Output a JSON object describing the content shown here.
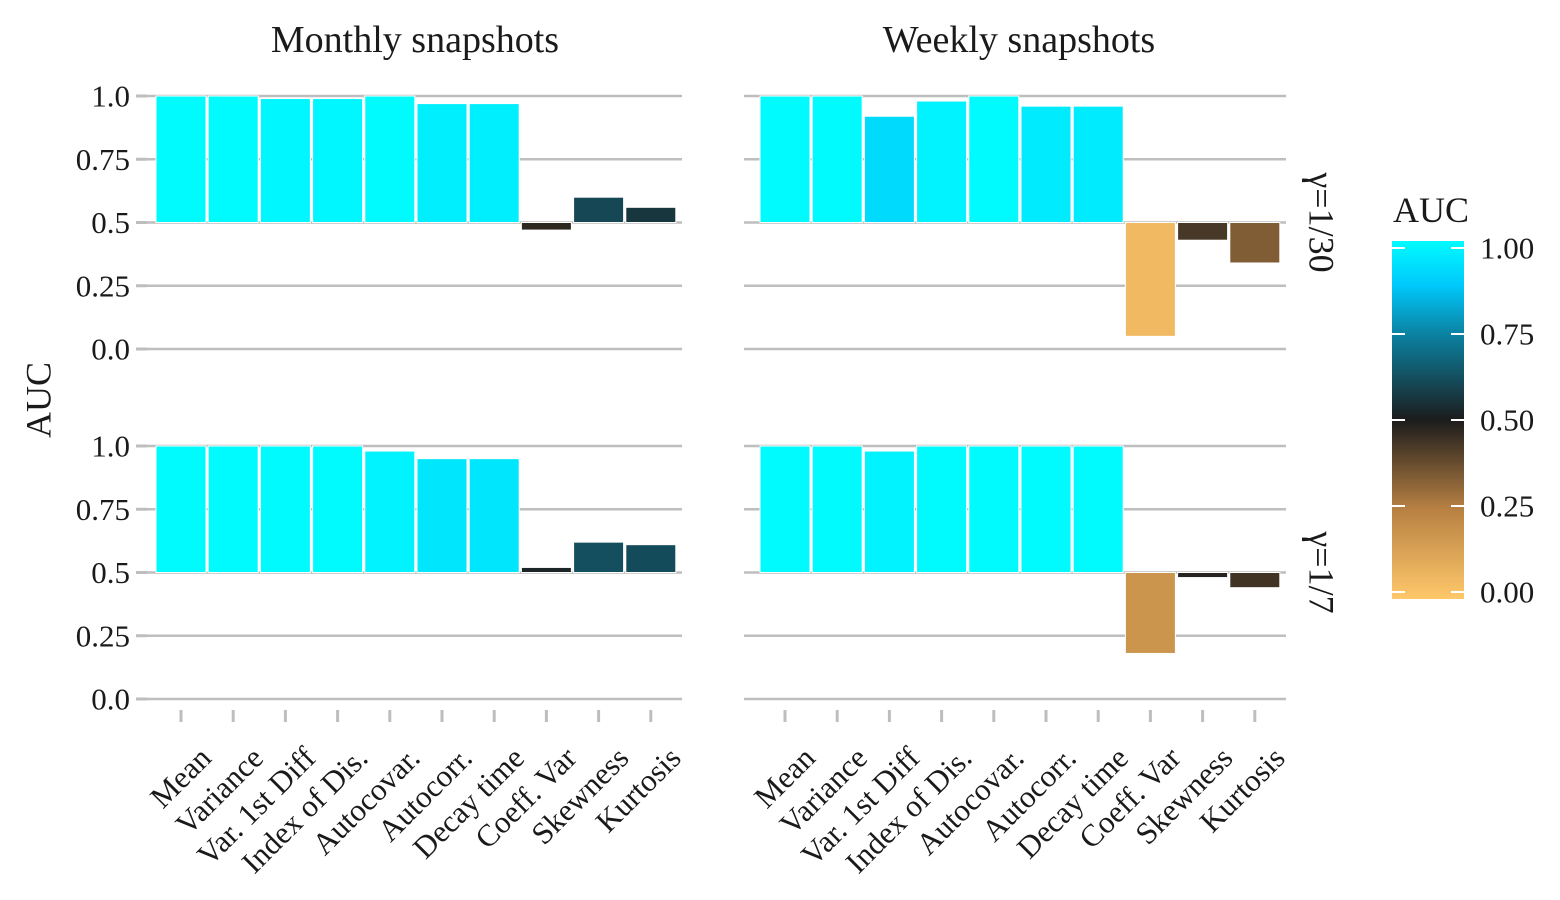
{
  "chart_data": {
    "type": "bar",
    "ylabel": "AUC",
    "xlabel": "",
    "ylim": [
      0,
      1
    ],
    "baseline": 0.5,
    "y_ticks": [
      "0.0",
      "0.25",
      "0.5",
      "0.75",
      "1.0"
    ],
    "y_tick_values": [
      0,
      0.25,
      0.5,
      0.75,
      1.0
    ],
    "categories": [
      "Mean",
      "Variance",
      "Var. 1st Diff",
      "Index of Dis.",
      "Autocovar.",
      "Autocorr.",
      "Decay time",
      "Coeff. Var",
      "Skewness",
      "Kurtosis"
    ],
    "columns": [
      "Monthly snapshots",
      "Weekly snapshots"
    ],
    "rows": [
      "γ=1/30",
      "γ=1/7"
    ],
    "panels": [
      {
        "column": "Monthly snapshots",
        "row": "γ=1/30",
        "values": [
          1.0,
          1.0,
          0.99,
          0.99,
          1.0,
          0.97,
          0.97,
          0.47,
          0.6,
          0.56
        ]
      },
      {
        "column": "Weekly snapshots",
        "row": "γ=1/30",
        "values": [
          1.0,
          1.0,
          0.92,
          0.98,
          1.0,
          0.96,
          0.96,
          0.05,
          0.43,
          0.34
        ]
      },
      {
        "column": "Monthly snapshots",
        "row": "γ=1/7",
        "values": [
          1.0,
          1.0,
          1.0,
          1.0,
          0.98,
          0.95,
          0.95,
          0.52,
          0.62,
          0.61
        ]
      },
      {
        "column": "Weekly snapshots",
        "row": "γ=1/7",
        "values": [
          1.0,
          1.0,
          0.98,
          1.0,
          1.0,
          1.0,
          1.0,
          0.18,
          0.48,
          0.44
        ]
      }
    ],
    "legend": {
      "title": "AUC",
      "placement": "right",
      "ticks": [
        "0.00",
        "0.25",
        "0.50",
        "0.75",
        "1.00"
      ],
      "tick_values": [
        0,
        0.25,
        0.5,
        0.75,
        1.0
      ]
    },
    "colorscale": [
      {
        "value": 0.0,
        "color": "#ffc86a"
      },
      {
        "value": 0.25,
        "color": "#b88143"
      },
      {
        "value": 0.5,
        "color": "#1c1c1c"
      },
      {
        "value": 0.75,
        "color": "#0a87a8"
      },
      {
        "value": 0.875,
        "color": "#00c8fb"
      },
      {
        "value": 1.0,
        "color": "#00fbff"
      }
    ],
    "grid": true
  }
}
